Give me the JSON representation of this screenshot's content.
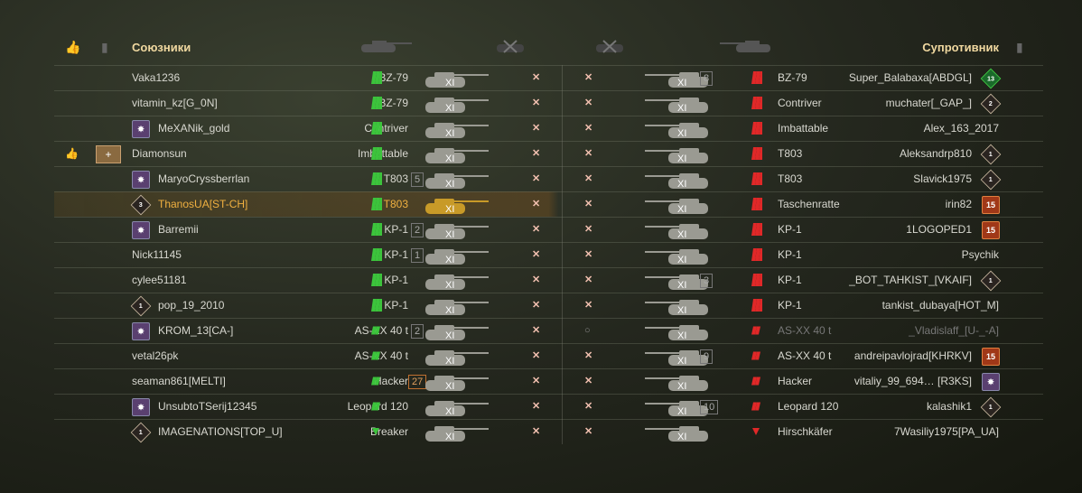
{
  "header": {
    "allies_title": "Союзники",
    "enemies_title": "Супротивник"
  },
  "colors": {
    "ally": "#3cc43c",
    "enemy": "#e02828",
    "highlight": "#f0b040",
    "title": "#f0d8a0"
  },
  "tier_label": "XI",
  "allies": [
    {
      "name": "Vaka1236",
      "vehicle": "BZ-79",
      "pips": 3,
      "status": "destroyed"
    },
    {
      "name": "vitamin_kz[G_0N]",
      "vehicle": "BZ-79",
      "pips": 3,
      "status": "destroyed"
    },
    {
      "name": "MeXANik_gold",
      "vehicle": "Contriver",
      "pips": 3,
      "status": "destroyed",
      "badge": "emblem"
    },
    {
      "name": "Diamonsun",
      "vehicle": "Imbattable",
      "pips": 3,
      "status": "destroyed",
      "like": true,
      "squad": true
    },
    {
      "name": "MaryoCryssberrlan",
      "vehicle": "T803",
      "pips": 3,
      "status": "destroyed",
      "badge": "emblem",
      "rank": "5"
    },
    {
      "name": "ThanosUA[ST-CH]",
      "vehicle": "T803",
      "pips": 3,
      "status": "destroyed",
      "badge": "3",
      "me": true
    },
    {
      "name": "Barremii",
      "vehicle": "KP-1",
      "pips": 3,
      "status": "destroyed",
      "badge": "emblem",
      "rank": "2"
    },
    {
      "name": "Nick11145",
      "vehicle": "KP-1",
      "pips": 3,
      "status": "destroyed",
      "rank": "1"
    },
    {
      "name": "cylee51181",
      "vehicle": "KP-1",
      "pips": 3,
      "status": "destroyed"
    },
    {
      "name": "pop_19_2010",
      "vehicle": "KP-1",
      "pips": 3,
      "status": "destroyed",
      "badge": "1"
    },
    {
      "name": "KROM_13[CA-]",
      "vehicle": "AS-XX 40 t",
      "pips": 2,
      "status": "destroyed",
      "badge": "emblem",
      "rank": "2"
    },
    {
      "name": "vetal26pk",
      "vehicle": "AS-XX 40 t",
      "pips": 2,
      "status": "destroyed"
    },
    {
      "name": "seaman861[MELTI]",
      "vehicle": "Hacker",
      "pips": 2,
      "status": "destroyed",
      "rank": "27"
    },
    {
      "name": "UnsubtoTSerij12345",
      "vehicle": "Leopard 120",
      "pips": 2,
      "status": "destroyed",
      "badge": "emblem"
    },
    {
      "name": "IMAGENATIONS[TOP_U]",
      "vehicle": "Breaker",
      "pips": 0,
      "status": "destroyed",
      "badge": "1"
    }
  ],
  "enemies": [
    {
      "name": "Super_Balabaxa[ABDGL]",
      "vehicle": "BZ-79",
      "pips": 3,
      "status": "destroyed",
      "badge": "13",
      "rank": "8"
    },
    {
      "name": "muchater[_GAP_]",
      "vehicle": "Contriver",
      "pips": 3,
      "status": "destroyed",
      "badge": "2"
    },
    {
      "name": "Alex_163_2017",
      "vehicle": "Imbattable",
      "pips": 3,
      "status": "destroyed"
    },
    {
      "name": "Aleksandrp810",
      "vehicle": "T803",
      "pips": 3,
      "status": "destroyed",
      "badge": "1"
    },
    {
      "name": "Slavick1975",
      "vehicle": "T803",
      "pips": 3,
      "status": "destroyed",
      "badge": "1"
    },
    {
      "name": "irin82",
      "vehicle": "Taschenratte",
      "pips": 3,
      "status": "destroyed",
      "badge": "15"
    },
    {
      "name": "1LOGOPED1",
      "vehicle": "KP-1",
      "pips": 3,
      "status": "destroyed",
      "badge": "15"
    },
    {
      "name": "Psychik",
      "vehicle": "KP-1",
      "pips": 3,
      "status": "destroyed"
    },
    {
      "name": "_BOT_TAHKIST_[VKAIF]",
      "vehicle": "KP-1",
      "pips": 3,
      "status": "destroyed",
      "badge": "1",
      "rank": "3"
    },
    {
      "name": "tankist_dubaya[HOT_M]",
      "vehicle": "KP-1",
      "pips": 3,
      "status": "destroyed"
    },
    {
      "name": "_Vladislaff_[U-_-A]",
      "vehicle": "AS-XX 40 t",
      "pips": 2,
      "status": "offline",
      "dim": true
    },
    {
      "name": "andreipavlojrad[KHRKV]",
      "vehicle": "AS-XX 40 t",
      "pips": 2,
      "status": "destroyed",
      "badge": "15",
      "rank": "9"
    },
    {
      "name": "vitaliy_99_694… [R3KS]",
      "vehicle": "Hacker",
      "pips": 2,
      "status": "destroyed",
      "badge": "emblem"
    },
    {
      "name": "kalashik1",
      "vehicle": "Leopard 120",
      "pips": 2,
      "status": "destroyed",
      "badge": "1",
      "rank": "10"
    },
    {
      "name": "7Wasiliy1975[PA_UA]",
      "vehicle": "Hirschkäfer",
      "pips": 0,
      "status": "destroyed"
    }
  ]
}
